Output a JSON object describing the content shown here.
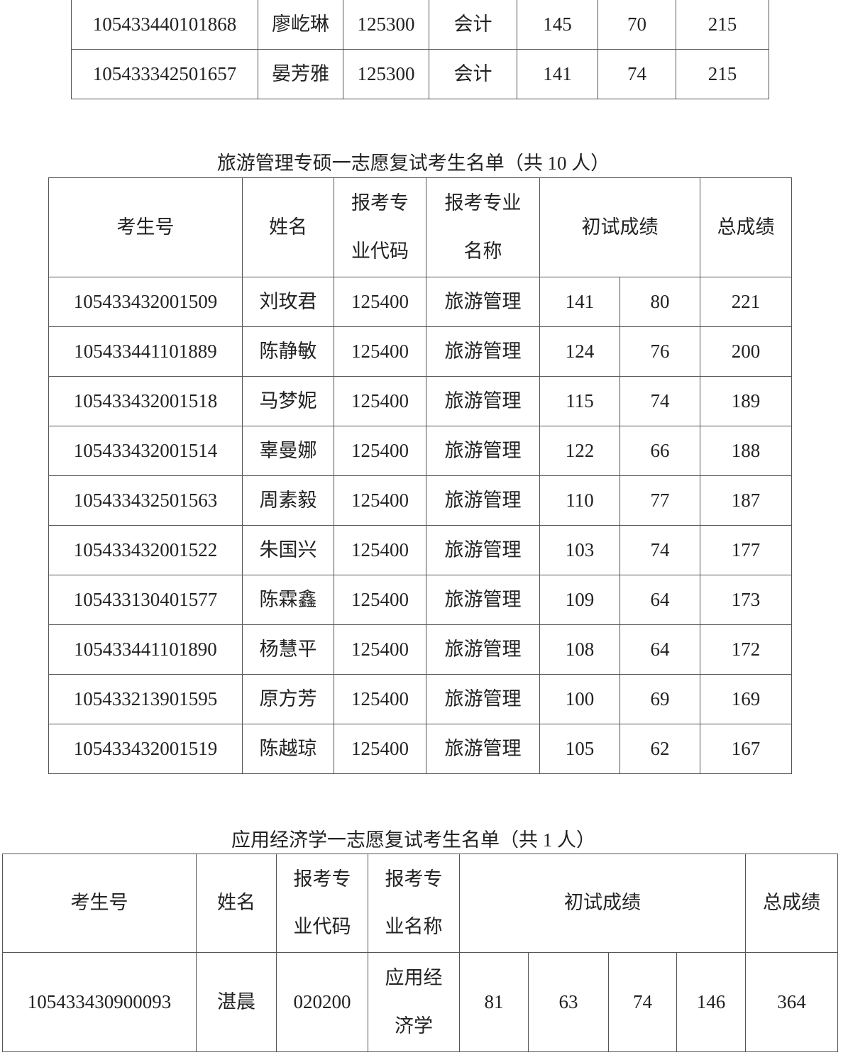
{
  "table_top": {
    "rows": [
      [
        "105433440101868",
        "廖屹琳",
        "125300",
        "会计",
        "145",
        "70",
        "215"
      ],
      [
        "105433342501657",
        "晏芳雅",
        "125300",
        "会计",
        "141",
        "74",
        "215"
      ]
    ]
  },
  "table_tourism": {
    "title": "旅游管理专硕一志愿复试考生名单（共 10 人）",
    "headers": {
      "id": "考生号",
      "name": "姓名",
      "code": "报考专业代码",
      "major": "报考专业名称",
      "prelim": "初试成绩",
      "total": "总成绩"
    },
    "rows": [
      [
        "105433432001509",
        "刘玫君",
        "125400",
        "旅游管理",
        "141",
        "80",
        "221"
      ],
      [
        "105433441101889",
        "陈静敏",
        "125400",
        "旅游管理",
        "124",
        "76",
        "200"
      ],
      [
        "105433432001518",
        "马梦妮",
        "125400",
        "旅游管理",
        "115",
        "74",
        "189"
      ],
      [
        "105433432001514",
        "辜曼娜",
        "125400",
        "旅游管理",
        "122",
        "66",
        "188"
      ],
      [
        "105433432501563",
        "周素毅",
        "125400",
        "旅游管理",
        "110",
        "77",
        "187"
      ],
      [
        "105433432001522",
        "朱国兴",
        "125400",
        "旅游管理",
        "103",
        "74",
        "177"
      ],
      [
        "105433130401577",
        "陈霖鑫",
        "125400",
        "旅游管理",
        "109",
        "64",
        "173"
      ],
      [
        "105433441101890",
        "杨慧平",
        "125400",
        "旅游管理",
        "108",
        "64",
        "172"
      ],
      [
        "105433213901595",
        "原方芳",
        "125400",
        "旅游管理",
        "100",
        "69",
        "169"
      ],
      [
        "105433432001519",
        "陈越琼",
        "125400",
        "旅游管理",
        "105",
        "62",
        "167"
      ]
    ]
  },
  "table_econ": {
    "title": "应用经济学一志愿复试考生名单（共 1 人）",
    "headers": {
      "id": "考生号",
      "name": "姓名",
      "code": "报考专业代码",
      "major": "报考专业名称",
      "prelim": "初试成绩",
      "total": "总成绩"
    },
    "rows": [
      [
        "105433430900093",
        "湛晨",
        "020200",
        "应用经济学",
        "81",
        "63",
        "74",
        "146",
        "364"
      ]
    ]
  }
}
